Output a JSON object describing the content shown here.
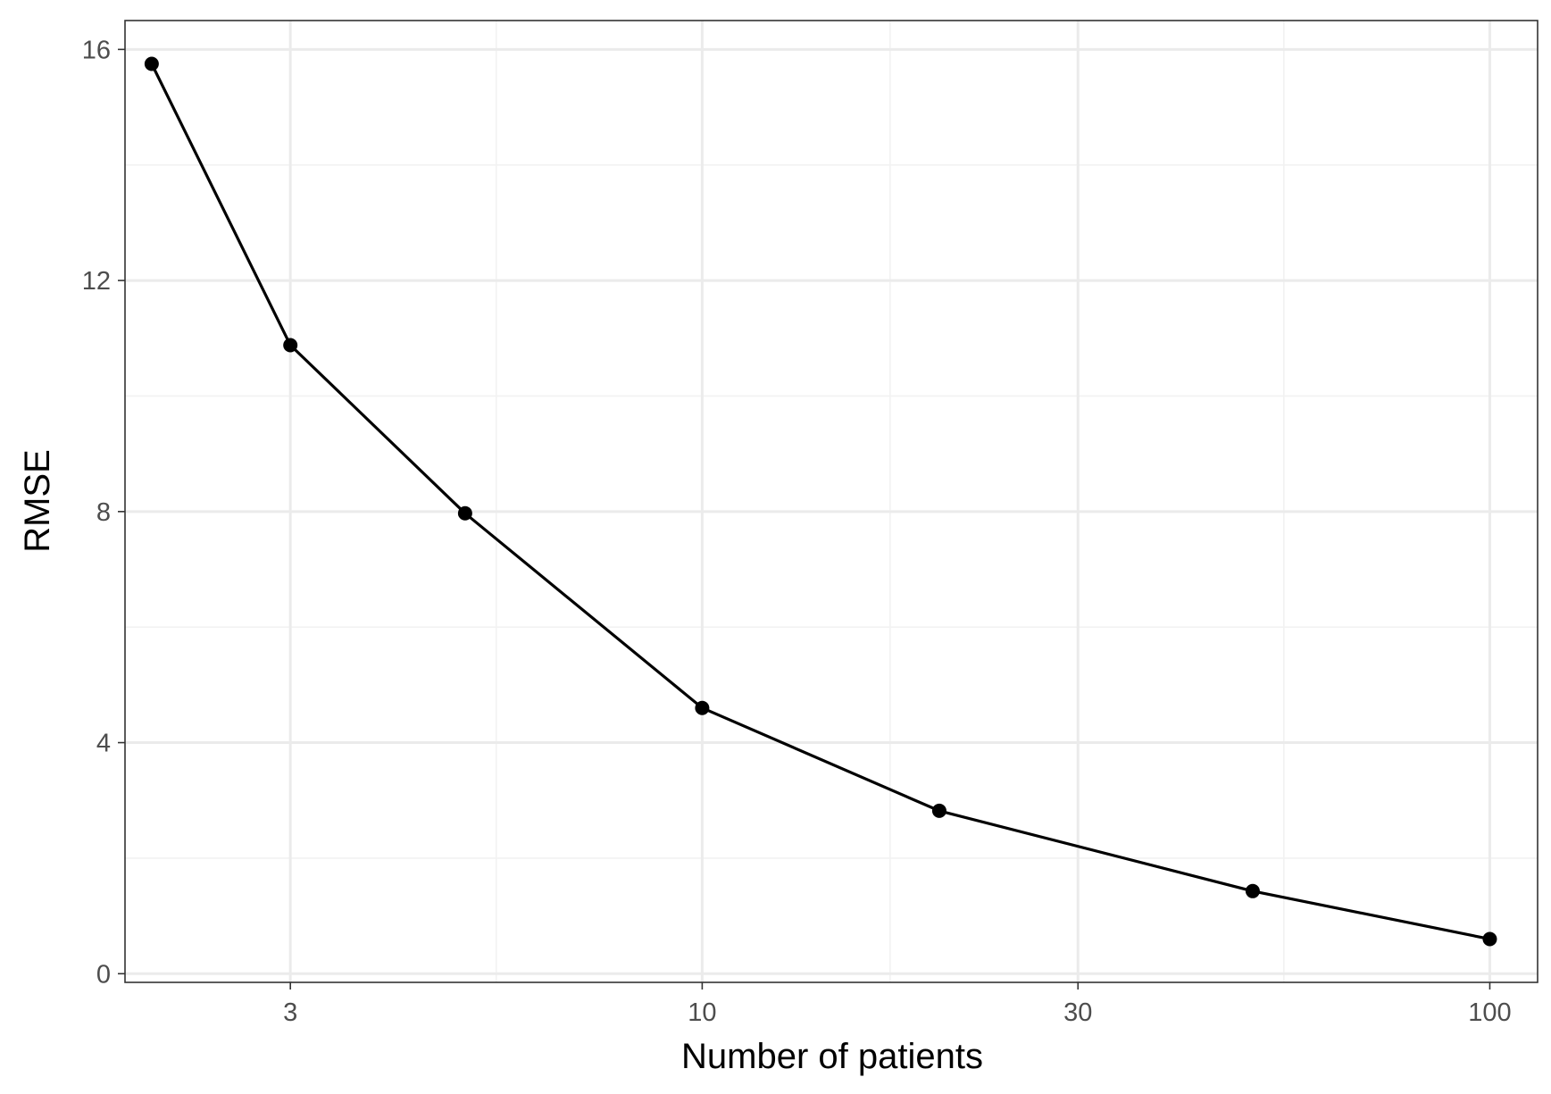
{
  "chart_data": {
    "type": "line",
    "xlabel": "Number of patients",
    "ylabel": "RMSE",
    "x_scale": "log10",
    "xlim": [
      1.85,
      115
    ],
    "ylim": [
      -0.15,
      16.5
    ],
    "x_ticks": [
      3,
      10,
      30,
      100
    ],
    "x_tick_labels": [
      "3",
      "10",
      "30",
      "100"
    ],
    "x_minor_ticks": [
      5.477,
      17.32,
      54.77
    ],
    "y_ticks": [
      0,
      4,
      8,
      12,
      16
    ],
    "y_tick_labels": [
      "0",
      "4",
      "8",
      "12",
      "16"
    ],
    "y_minor_ticks": [
      2,
      6,
      10,
      14
    ],
    "grid": true,
    "legend": "none",
    "series": [
      {
        "x": [
          2,
          3,
          5,
          10,
          20,
          50,
          100
        ],
        "y": [
          15.75,
          10.88,
          7.97,
          4.6,
          2.82,
          1.43,
          0.6
        ]
      }
    ],
    "colors": {
      "line": "#000000",
      "points": "#000000",
      "grid_major": "#ebebeb",
      "grid_minor": "#f2f2f2",
      "panel_border": "#333333",
      "tick_label": "#4d4d4d"
    }
  }
}
